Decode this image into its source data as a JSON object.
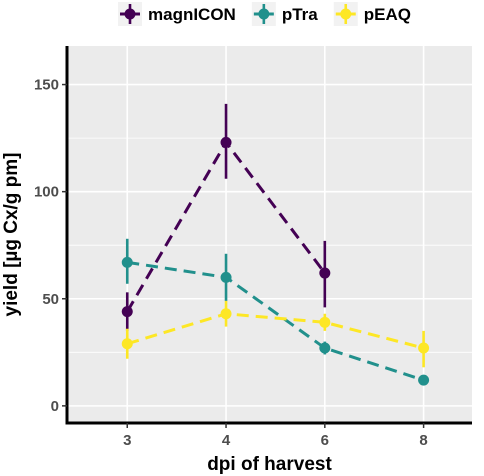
{
  "chart_data": {
    "type": "line",
    "title": "",
    "xlabel": "dpi of harvest",
    "ylabel": "yield [µg Cx/g pm]",
    "categories": [
      "3",
      "4",
      "6",
      "8"
    ],
    "ylim": [
      -8,
      168
    ],
    "yticks": [
      0,
      50,
      100,
      150
    ],
    "grid": true,
    "legend_position": "top",
    "line_style": "dashed",
    "series": [
      {
        "name": "magnICON",
        "color": "#440154",
        "points": [
          {
            "x": "3",
            "y": 44,
            "lo": 35,
            "hi": 53
          },
          {
            "x": "4",
            "y": 123,
            "lo": 106,
            "hi": 141
          },
          {
            "x": "6",
            "y": 62,
            "lo": 46,
            "hi": 77
          }
        ]
      },
      {
        "name": "pTra",
        "color": "#21908C",
        "points": [
          {
            "x": "3",
            "y": 67,
            "lo": 57,
            "hi": 78
          },
          {
            "x": "4",
            "y": 60,
            "lo": 49,
            "hi": 71
          },
          {
            "x": "6",
            "y": 27,
            "lo": 24,
            "hi": 30
          },
          {
            "x": "8",
            "y": 12,
            "lo": 11,
            "hi": 13
          }
        ]
      },
      {
        "name": "pEAQ",
        "color": "#FDE725",
        "points": [
          {
            "x": "3",
            "y": 29,
            "lo": 22,
            "hi": 36
          },
          {
            "x": "4",
            "y": 43,
            "lo": 37,
            "hi": 49
          },
          {
            "x": "6",
            "y": 39,
            "lo": 35,
            "hi": 43
          },
          {
            "x": "8",
            "y": 27,
            "lo": 18,
            "hi": 35
          }
        ]
      }
    ]
  }
}
